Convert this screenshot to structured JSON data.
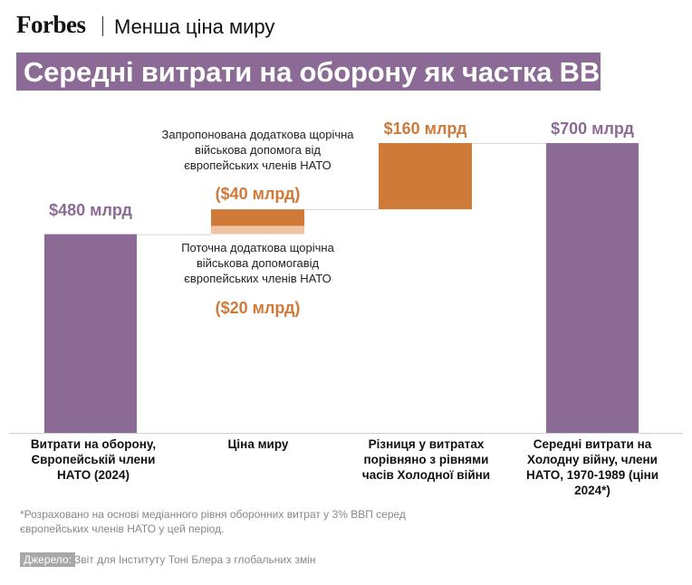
{
  "header": {
    "brand": "Forbes",
    "section": "Менша ціна миру",
    "title": "Середні витрати на оборону як частка ВВП"
  },
  "colors": {
    "purple": "#8b6b95",
    "orange": "#d07a3a",
    "orange_light": "#f0c4a2",
    "title_bg": "#8b6b95"
  },
  "chart_data": {
    "type": "bar",
    "subtype": "waterfall",
    "unit": "$ млрд",
    "categories": [
      "Витрати на оборону, Європейській члени НАТО (2024)",
      "Ціна миру",
      "Різниця у витратах порівняно з рівнями часів Холодної війни",
      "Середні витрати на Холодну війну, члени НАТО, 1970-1989 (ціни 2024*)"
    ],
    "bars": [
      {
        "category_index": 0,
        "start": 0,
        "end": 480,
        "label": "$480 млрд",
        "color": "purple"
      },
      {
        "category_index": 1,
        "start": 480,
        "end": 500,
        "label": "($20 млрд)",
        "color": "orange_light",
        "desc": "Поточна додаткова щорічна військова допомогавід європейських членів НАТО"
      },
      {
        "category_index": 1,
        "start": 500,
        "end": 540,
        "label": "($40 млрд)",
        "color": "orange",
        "desc": "Запропонована додаткова щорічна військова допомога від європейських членів НАТО"
      },
      {
        "category_index": 2,
        "start": 540,
        "end": 700,
        "label": "$160 млрд",
        "color": "orange"
      },
      {
        "category_index": 3,
        "start": 0,
        "end": 700,
        "label": "$700 млрд",
        "color": "purple"
      }
    ],
    "ylim": [
      0,
      700
    ]
  },
  "footer": {
    "note": "*Розраховано на основі медіанного рівня оборонних витрат у 3% ВВП серед європейських членів НАТО у цей період.",
    "source_label": "Джерело:",
    "source_text": "Звіт для Інституту Тоні Блера з глобальних змін"
  }
}
